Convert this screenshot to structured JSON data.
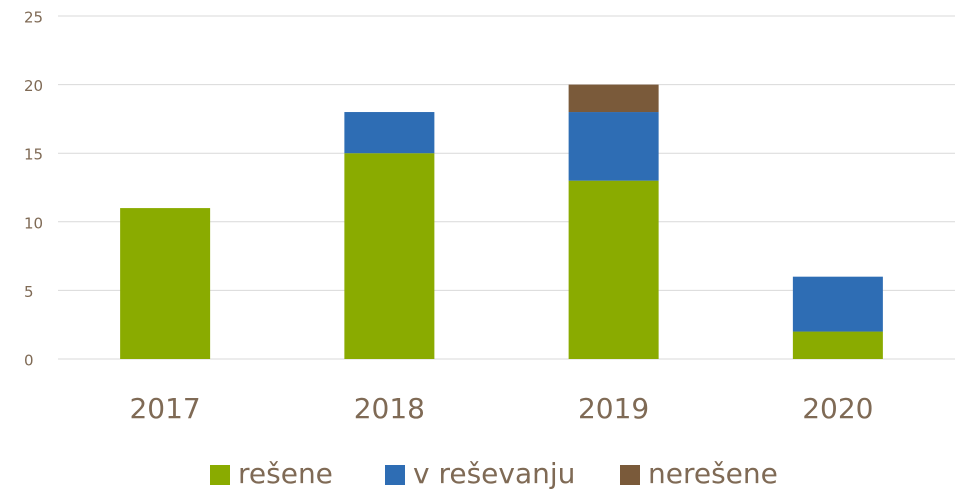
{
  "chart_data": {
    "type": "stacked_bar",
    "categories": [
      "2017",
      "2018",
      "2019",
      "2020"
    ],
    "series": [
      {
        "name": "rešene",
        "color": "#8aab00",
        "values": [
          11,
          15,
          13,
          2
        ]
      },
      {
        "name": "v reševanju",
        "color": "#2e6db4",
        "values": [
          0,
          3,
          5,
          4
        ]
      },
      {
        "name": "nerešene",
        "color": "#7a5a3a",
        "values": [
          0,
          0,
          2,
          0
        ]
      }
    ],
    "ylim": [
      0,
      25
    ],
    "yticks": [
      0,
      5,
      10,
      15,
      20,
      25
    ],
    "grid": true,
    "legend": "bottom"
  }
}
